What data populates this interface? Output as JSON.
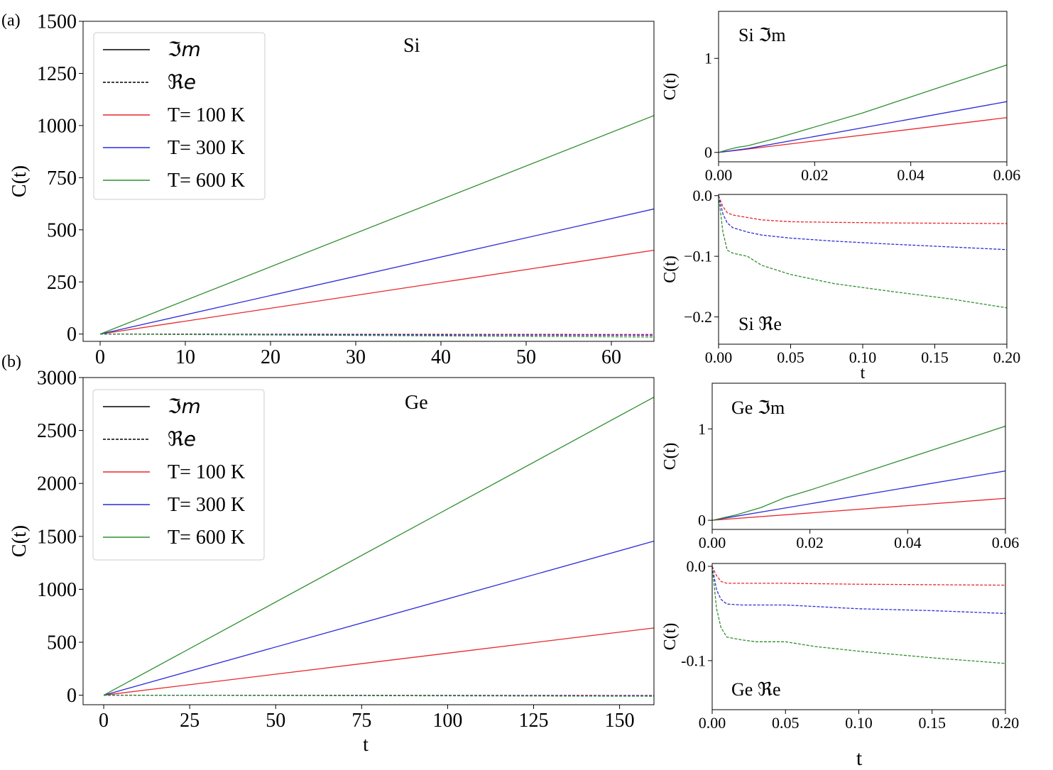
{
  "figure": {
    "background": "#ffffff"
  },
  "chart_data": [
    {
      "id": "a_main",
      "type": "line",
      "panel_label": "(a)",
      "annotation": "Si",
      "xlabel": "",
      "ylabel": "C(t)",
      "xlim": [
        -2,
        65
      ],
      "ylim": [
        -35,
        1500
      ],
      "xticks": [
        0,
        10,
        20,
        30,
        40,
        50,
        60
      ],
      "xticklabels": [
        "0",
        "10",
        "20",
        "30",
        "40",
        "50",
        "60"
      ],
      "yticks": [
        0,
        250,
        500,
        750,
        1000,
        1250,
        1500
      ],
      "yticklabels": [
        "0",
        "250",
        "500",
        "750",
        "1000",
        "1250",
        "1500"
      ],
      "legend": {
        "position": "top-left",
        "entries": [
          {
            "label": "ℑm",
            "style": "solid",
            "color": "#000000"
          },
          {
            "label": "ℜe",
            "style": "dashed",
            "color": "#000000"
          },
          {
            "label": "T= 100 K",
            "style": "solid",
            "color": "#e8272b"
          },
          {
            "label": "T= 300 K",
            "style": "solid",
            "color": "#2b2bd9"
          },
          {
            "label": "T= 600 K",
            "style": "solid",
            "color": "#2f8f2f"
          }
        ]
      },
      "series": [
        {
          "name": "T= 100 K ℑm",
          "color": "#e8272b",
          "style": "solid",
          "x": [
            0,
            65
          ],
          "y": [
            0,
            402
          ]
        },
        {
          "name": "T= 300 K ℑm",
          "color": "#2b2bd9",
          "style": "solid",
          "x": [
            0,
            65
          ],
          "y": [
            0,
            600
          ]
        },
        {
          "name": "T= 600 K ℑm",
          "color": "#2f8f2f",
          "style": "solid",
          "x": [
            0,
            65
          ],
          "y": [
            0,
            1048
          ]
        },
        {
          "name": "T= 100 K ℜe",
          "color": "#e8272b",
          "style": "dashed",
          "x": [
            0,
            65
          ],
          "y": [
            0,
            -2
          ]
        },
        {
          "name": "T= 300 K ℜe",
          "color": "#2b2bd9",
          "style": "dashed",
          "x": [
            0,
            65
          ],
          "y": [
            0,
            -6
          ]
        },
        {
          "name": "T= 600 K ℜe",
          "color": "#2f8f2f",
          "style": "dashed",
          "x": [
            0,
            65
          ],
          "y": [
            0,
            -14
          ]
        }
      ]
    },
    {
      "id": "a_im",
      "type": "line",
      "annotation": "Si  ℑm",
      "xlabel": "",
      "ylabel": "C(t)",
      "xlim": [
        0,
        0.06
      ],
      "ylim": [
        -0.1,
        1.5
      ],
      "xticks": [
        0,
        0.02,
        0.04,
        0.06
      ],
      "xticklabels": [
        "0.00",
        "0.02",
        "0.04",
        "0.06"
      ],
      "yticks": [
        0,
        1
      ],
      "yticklabels": [
        "0",
        "1"
      ],
      "series": [
        {
          "name": "T= 100 K",
          "color": "#e8272b",
          "style": "solid",
          "x": [
            0,
            0.006,
            0.06
          ],
          "y": [
            0,
            0.035,
            0.37
          ]
        },
        {
          "name": "T= 300 K",
          "color": "#2b2bd9",
          "style": "solid",
          "x": [
            0,
            0.006,
            0.06
          ],
          "y": [
            0,
            0.04,
            0.54
          ]
        },
        {
          "name": "T= 600 K",
          "color": "#2f8f2f",
          "style": "solid",
          "x": [
            0,
            0.002,
            0.004,
            0.006,
            0.012,
            0.03,
            0.06
          ],
          "y": [
            0,
            0.03,
            0.055,
            0.07,
            0.15,
            0.42,
            0.93
          ]
        }
      ]
    },
    {
      "id": "a_re",
      "type": "line",
      "annotation": "Si  ℜe",
      "xlabel": "t",
      "ylabel": "C(t)",
      "xlim": [
        0,
        0.2
      ],
      "ylim": [
        -0.245,
        0.002
      ],
      "xticks": [
        0,
        0.05,
        0.1,
        0.15,
        0.2
      ],
      "xticklabels": [
        "0.00",
        "0.05",
        "0.10",
        "0.15",
        "0.20"
      ],
      "yticks": [
        0,
        -0.1,
        -0.2
      ],
      "yticklabels": [
        "0.0",
        "−0.1",
        "−0.2"
      ],
      "series": [
        {
          "name": "T= 100 K",
          "color": "#e8272b",
          "style": "dashed",
          "x": [
            0,
            0.003,
            0.006,
            0.01,
            0.02,
            0.03,
            0.05,
            0.08,
            0.12,
            0.2
          ],
          "y": [
            0,
            -0.018,
            -0.028,
            -0.032,
            -0.036,
            -0.04,
            -0.043,
            -0.044,
            -0.045,
            -0.046
          ]
        },
        {
          "name": "T= 300 K",
          "color": "#2b2bd9",
          "style": "dashed",
          "x": [
            0,
            0.003,
            0.006,
            0.01,
            0.02,
            0.03,
            0.05,
            0.08,
            0.12,
            0.2
          ],
          "y": [
            0,
            -0.03,
            -0.045,
            -0.053,
            -0.06,
            -0.065,
            -0.07,
            -0.075,
            -0.08,
            -0.089
          ]
        },
        {
          "name": "T= 600 K",
          "color": "#2f8f2f",
          "style": "dashed",
          "x": [
            0,
            0.003,
            0.006,
            0.01,
            0.02,
            0.03,
            0.05,
            0.08,
            0.12,
            0.16,
            0.2
          ],
          "y": [
            0,
            -0.06,
            -0.09,
            -0.095,
            -0.1,
            -0.115,
            -0.13,
            -0.145,
            -0.158,
            -0.17,
            -0.185
          ]
        }
      ]
    },
    {
      "id": "b_main",
      "type": "line",
      "panel_label": "(b)",
      "annotation": "Ge",
      "xlabel": "t",
      "ylabel": "C(t)",
      "xlim": [
        -6,
        160
      ],
      "ylim": [
        -90,
        3000
      ],
      "xticks": [
        0,
        25,
        50,
        75,
        100,
        125,
        150
      ],
      "xticklabels": [
        "0",
        "25",
        "50",
        "75",
        "100",
        "125",
        "150"
      ],
      "yticks": [
        0,
        500,
        1000,
        1500,
        2000,
        2500,
        3000
      ],
      "yticklabels": [
        "0",
        "500",
        "1000",
        "1500",
        "2000",
        "2500",
        "3000"
      ],
      "legend": {
        "position": "top-left",
        "entries": [
          {
            "label": "ℑm",
            "style": "solid",
            "color": "#000000"
          },
          {
            "label": "ℜe",
            "style": "dashed",
            "color": "#000000"
          },
          {
            "label": "T= 100 K",
            "style": "solid",
            "color": "#e8272b"
          },
          {
            "label": "T= 300 K",
            "style": "solid",
            "color": "#2b2bd9"
          },
          {
            "label": "T= 600 K",
            "style": "solid",
            "color": "#2f8f2f"
          }
        ]
      },
      "series": [
        {
          "name": "T= 100 K ℑm",
          "color": "#e8272b",
          "style": "solid",
          "x": [
            0,
            160
          ],
          "y": [
            0,
            635
          ]
        },
        {
          "name": "T= 300 K ℑm",
          "color": "#2b2bd9",
          "style": "solid",
          "x": [
            0,
            160
          ],
          "y": [
            0,
            1455
          ]
        },
        {
          "name": "T= 600 K ℑm",
          "color": "#2f8f2f",
          "style": "solid",
          "x": [
            0,
            160
          ],
          "y": [
            0,
            2815
          ]
        },
        {
          "name": "T= 100 K ℜe",
          "color": "#e8272b",
          "style": "dashed",
          "x": [
            0,
            160
          ],
          "y": [
            0,
            -2
          ]
        },
        {
          "name": "T= 300 K ℜe",
          "color": "#2b2bd9",
          "style": "dashed",
          "x": [
            0,
            160
          ],
          "y": [
            0,
            -5
          ]
        },
        {
          "name": "T= 600 K ℜe",
          "color": "#2f8f2f",
          "style": "dashed",
          "x": [
            0,
            160
          ],
          "y": [
            0,
            -10
          ]
        }
      ]
    },
    {
      "id": "b_im",
      "type": "line",
      "annotation": "Ge ℑm",
      "xlabel": "",
      "ylabel": "C(t)",
      "xlim": [
        0,
        0.06
      ],
      "ylim": [
        -0.1,
        1.5
      ],
      "xticks": [
        0,
        0.02,
        0.04,
        0.06
      ],
      "xticklabels": [
        "0.00",
        "0.02",
        "0.04",
        "0.06"
      ],
      "yticks": [
        0,
        1
      ],
      "yticklabels": [
        "0",
        "1"
      ],
      "series": [
        {
          "name": "T= 100 K",
          "color": "#e8272b",
          "style": "solid",
          "x": [
            0,
            0.06
          ],
          "y": [
            0,
            0.24
          ]
        },
        {
          "name": "T= 300 K",
          "color": "#2b2bd9",
          "style": "solid",
          "x": [
            0,
            0.06
          ],
          "y": [
            0,
            0.54
          ]
        },
        {
          "name": "T= 600 K",
          "color": "#2f8f2f",
          "style": "solid",
          "x": [
            0,
            0.005,
            0.01,
            0.015,
            0.02,
            0.06
          ],
          "y": [
            0,
            0.06,
            0.14,
            0.25,
            0.33,
            1.03
          ]
        }
      ]
    },
    {
      "id": "b_re",
      "type": "line",
      "annotation": "Ge ℜe",
      "xlabel": "t",
      "ylabel": "C(t)",
      "xlim": [
        0,
        0.2
      ],
      "ylim": [
        -0.152,
        0.003
      ],
      "xticks": [
        0,
        0.05,
        0.1,
        0.15,
        0.2
      ],
      "xticklabels": [
        "0.00",
        "0.05",
        "0.10",
        "0.15",
        "0.20"
      ],
      "yticks": [
        0,
        -0.1
      ],
      "yticklabels": [
        "0.0",
        "-0.1"
      ],
      "series": [
        {
          "name": "T= 100 K",
          "color": "#e8272b",
          "style": "dashed",
          "x": [
            0,
            0.003,
            0.006,
            0.01,
            0.02,
            0.05,
            0.1,
            0.2
          ],
          "y": [
            0,
            -0.01,
            -0.016,
            -0.018,
            -0.018,
            -0.018,
            -0.019,
            -0.02
          ]
        },
        {
          "name": "T= 300 K",
          "color": "#2b2bd9",
          "style": "dashed",
          "x": [
            0,
            0.003,
            0.006,
            0.01,
            0.02,
            0.05,
            0.1,
            0.15,
            0.2
          ],
          "y": [
            0,
            -0.025,
            -0.035,
            -0.04,
            -0.041,
            -0.041,
            -0.045,
            -0.047,
            -0.05
          ]
        },
        {
          "name": "T= 600 K",
          "color": "#2f8f2f",
          "style": "dashed",
          "x": [
            0,
            0.003,
            0.006,
            0.01,
            0.02,
            0.03,
            0.05,
            0.07,
            0.1,
            0.15,
            0.2
          ],
          "y": [
            0,
            -0.045,
            -0.065,
            -0.075,
            -0.078,
            -0.08,
            -0.08,
            -0.085,
            -0.09,
            -0.097,
            -0.103
          ]
        }
      ]
    }
  ]
}
